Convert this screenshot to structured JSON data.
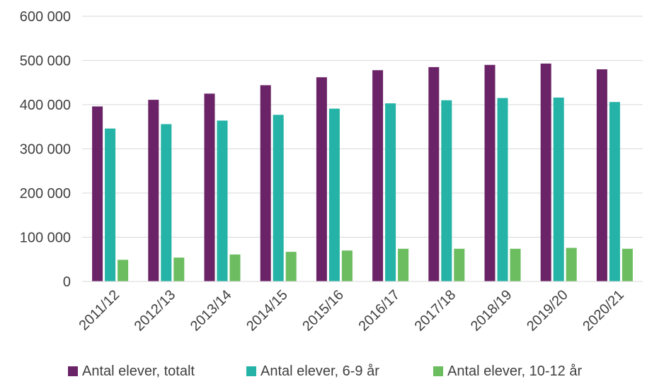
{
  "chart_data": {
    "type": "bar",
    "categories": [
      "2011/12",
      "2012/13",
      "2013/14",
      "2014/15",
      "2015/16",
      "2016/17",
      "2017/18",
      "2018/19",
      "2019/20",
      "2020/21"
    ],
    "series": [
      {
        "name": "Antal elever, totalt",
        "color": "#6b2367",
        "values": [
          396000,
          411000,
          425000,
          444000,
          462000,
          478000,
          485000,
          490000,
          493000,
          480000
        ]
      },
      {
        "name": "Antal elever, 6-9 år",
        "color": "#24b3a6",
        "values": [
          346000,
          356000,
          364000,
          377000,
          391000,
          403000,
          410000,
          415000,
          416000,
          406000
        ]
      },
      {
        "name": "Antal elever, 10-12 år",
        "color": "#6bbd5f",
        "values": [
          49000,
          54000,
          61000,
          67000,
          70000,
          74000,
          74000,
          74000,
          76000,
          74000
        ]
      }
    ],
    "title": "",
    "xlabel": "",
    "ylabel": "",
    "ylim": [
      0,
      600000
    ],
    "yticks": [
      0,
      100000,
      200000,
      300000,
      400000,
      500000,
      600000
    ],
    "ytick_labels": [
      "0",
      "100 000",
      "200 000",
      "300 000",
      "400 000",
      "500 000",
      "600 000"
    ],
    "grid": true,
    "legend_position": "bottom"
  }
}
